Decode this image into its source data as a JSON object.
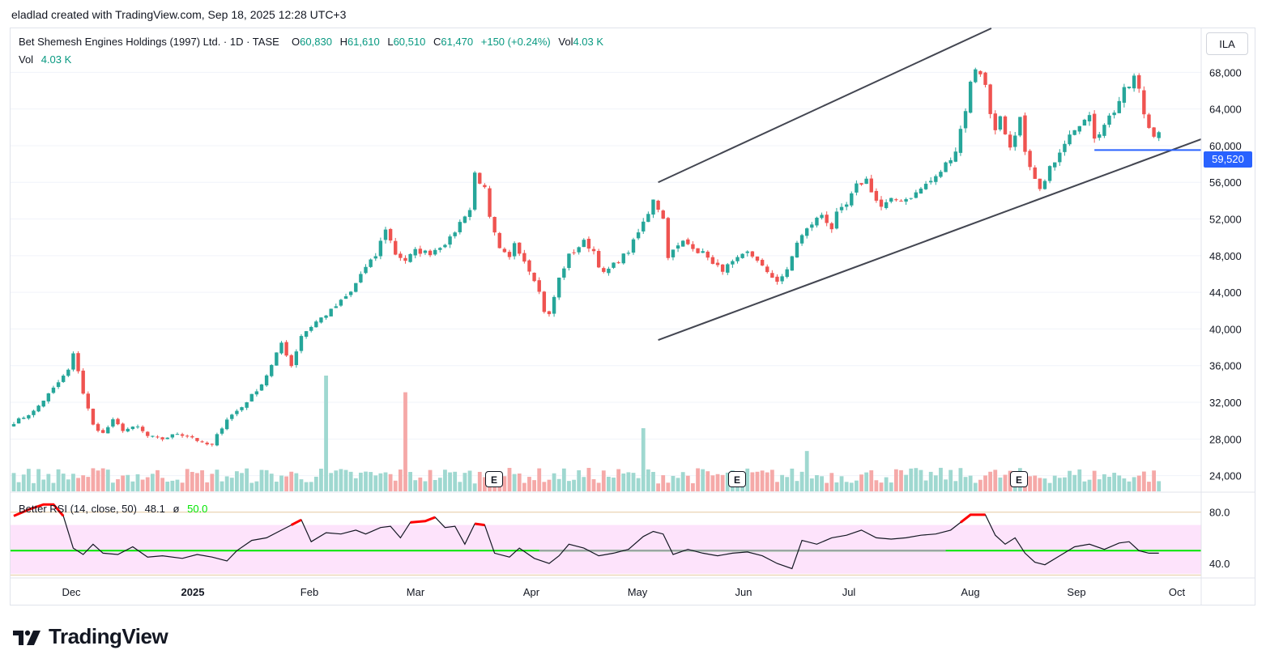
{
  "header": {
    "credit": "eladlad created with TradingView.com, Sep 18, 2025 12:28 UTC+3"
  },
  "legend": {
    "title": "Bet Shemesh Engines Holdings (1997) Ltd. · 1D · TASE",
    "o_label": "O",
    "o_value": "60,830",
    "h_label": "H",
    "h_value": "61,610",
    "l_label": "L",
    "l_value": "60,510",
    "c_label": "C",
    "c_value": "61,470",
    "change": "+150 (+0.24%)",
    "vol_label": "Vol",
    "vol_value": "4.03 K",
    "vol_row_label": "Vol",
    "vol_row_value": "4.03 K"
  },
  "ticker_button": "ILA",
  "last_price_badge": "59,520",
  "earnings_marker": "E",
  "rsi_legend": {
    "name": "Better RSI (14, close, 50)",
    "value": "48.1",
    "sep": "ø",
    "level": "50.0"
  },
  "brand": {
    "name": "TradingView",
    "icon": "tradingview-logo-icon"
  },
  "colors": {
    "up": "#26a69a",
    "down": "#ef5350",
    "vol_up": "#9fd8d0",
    "vol_down": "#f5a9a8",
    "channel": "#434651",
    "support": "#2962ff",
    "rsi_line": "#131722",
    "rsi_over": "#ff0000",
    "rsi_mid": "#00e600",
    "rsi_band": "#fde3fb"
  },
  "chart_data": {
    "type": "candlestick",
    "title": "Bet Shemesh Engines Holdings (1997) Ltd.",
    "interval": "1D",
    "exchange": "TASE",
    "currency": "ILA",
    "x_labels": [
      "Dec",
      "2025",
      "Feb",
      "Mar",
      "Apr",
      "May",
      "Jun",
      "Jul",
      "Aug",
      "Sep",
      "Oct"
    ],
    "y_ticks": [
      24000,
      28000,
      32000,
      36000,
      40000,
      44000,
      48000,
      52000,
      56000,
      60000,
      64000,
      68000
    ],
    "ylim": [
      22200,
      72800
    ],
    "price_path": [
      [
        0,
        29800
      ],
      [
        4,
        31000
      ],
      [
        8,
        33500
      ],
      [
        11,
        35500
      ],
      [
        12,
        37200
      ],
      [
        13,
        35500
      ],
      [
        14,
        33000
      ],
      [
        16,
        29500
      ],
      [
        18,
        28600
      ],
      [
        20,
        30000
      ],
      [
        22,
        29000
      ],
      [
        25,
        29300
      ],
      [
        27,
        28300
      ],
      [
        30,
        28000
      ],
      [
        33,
        28600
      ],
      [
        36,
        28200
      ],
      [
        38,
        27500
      ],
      [
        40,
        27300
      ],
      [
        41,
        28400
      ],
      [
        43,
        30200
      ],
      [
        46,
        31500
      ],
      [
        50,
        34000
      ],
      [
        52,
        36000
      ],
      [
        54,
        38500
      ],
      [
        56,
        36000
      ],
      [
        58,
        39300
      ],
      [
        61,
        40800
      ],
      [
        64,
        42000
      ],
      [
        68,
        44000
      ],
      [
        70,
        46000
      ],
      [
        73,
        48000
      ],
      [
        75,
        51000
      ],
      [
        77,
        48200
      ],
      [
        79,
        47500
      ],
      [
        81,
        48500
      ],
      [
        84,
        48300
      ],
      [
        88,
        49800
      ],
      [
        91,
        52500
      ],
      [
        92,
        53000
      ],
      [
        93,
        57000
      ],
      [
        95,
        55200
      ],
      [
        96,
        52000
      ],
      [
        98,
        48600
      ],
      [
        100,
        47700
      ],
      [
        101,
        49500
      ],
      [
        103,
        47500
      ],
      [
        105,
        45500
      ],
      [
        106,
        44000
      ],
      [
        107,
        42000
      ],
      [
        108,
        41500
      ],
      [
        109,
        43500
      ],
      [
        110,
        45500
      ],
      [
        112,
        48000
      ],
      [
        115,
        49500
      ],
      [
        117,
        48500
      ],
      [
        118,
        47000
      ],
      [
        119,
        46000
      ],
      [
        122,
        47500
      ],
      [
        124,
        48500
      ],
      [
        126,
        50500
      ],
      [
        128,
        52700
      ],
      [
        129,
        54300
      ],
      [
        130,
        53200
      ],
      [
        131,
        52000
      ],
      [
        132,
        48000
      ],
      [
        135,
        49500
      ],
      [
        137,
        49000
      ],
      [
        138,
        48500
      ],
      [
        140,
        48000
      ],
      [
        141,
        47000
      ],
      [
        143,
        46500
      ],
      [
        145,
        47200
      ],
      [
        148,
        48300
      ],
      [
        150,
        47600
      ],
      [
        152,
        46000
      ],
      [
        154,
        45300
      ],
      [
        156,
        46300
      ],
      [
        158,
        49500
      ],
      [
        161,
        51500
      ],
      [
        163,
        52500
      ],
      [
        165,
        51000
      ],
      [
        166,
        52500
      ],
      [
        168,
        53500
      ],
      [
        170,
        55600
      ],
      [
        172,
        56300
      ],
      [
        174,
        54000
      ],
      [
        175,
        53300
      ],
      [
        177,
        54000
      ],
      [
        180,
        54200
      ],
      [
        182,
        54800
      ],
      [
        184,
        55800
      ],
      [
        186,
        56500
      ],
      [
        188,
        58000
      ],
      [
        190,
        59500
      ],
      [
        191,
        61800
      ],
      [
        192,
        64000
      ],
      [
        193,
        66800
      ],
      [
        194,
        68500
      ],
      [
        195,
        68000
      ],
      [
        196,
        66500
      ],
      [
        197,
        63500
      ],
      [
        198,
        62000
      ],
      [
        199,
        63000
      ],
      [
        200,
        61000
      ],
      [
        201,
        59500
      ],
      [
        202,
        60800
      ],
      [
        203,
        63000
      ],
      [
        204,
        59000
      ],
      [
        205,
        58000
      ],
      [
        206,
        56200
      ],
      [
        207,
        55200
      ],
      [
        208,
        56000
      ],
      [
        209,
        57500
      ],
      [
        211,
        59500
      ],
      [
        213,
        61500
      ],
      [
        215,
        62500
      ],
      [
        217,
        63000
      ],
      [
        218,
        61000
      ],
      [
        219,
        61500
      ],
      [
        220,
        62500
      ],
      [
        222,
        63800
      ],
      [
        224,
        66000
      ],
      [
        225,
        66500
      ],
      [
        226,
        67500
      ],
      [
        227,
        66000
      ],
      [
        228,
        63500
      ],
      [
        229,
        62000
      ],
      [
        230,
        61300
      ],
      [
        231,
        61500
      ]
    ],
    "candle_count": 232,
    "volume": {
      "spikes": [
        {
          "index": 63,
          "value": 13200
        },
        {
          "index": 79,
          "value": 11300
        },
        {
          "index": 127,
          "value": 7200
        },
        {
          "index": 160,
          "value": 4600
        }
      ]
    },
    "channel": {
      "upper": [
        [
          130,
          56000
        ],
        [
          222,
          79000
        ]
      ],
      "lower": [
        [
          130,
          38800
        ],
        [
          240,
          60800
        ]
      ]
    },
    "support_line": {
      "from_index": 218,
      "price": 59520
    },
    "earnings_markers": [
      98,
      147,
      204
    ],
    "rsi": {
      "name": "Better RSI",
      "params": "14, close, 50",
      "ylim": [
        30,
        88
      ],
      "y_ticks": [
        40.0,
        80.0
      ],
      "midline": 50.0,
      "band": [
        32,
        70
      ],
      "overbought_level": 70,
      "last": 48.1,
      "path": [
        [
          0,
          77
        ],
        [
          3,
          82
        ],
        [
          6,
          86
        ],
        [
          8,
          86
        ],
        [
          10,
          77
        ],
        [
          12,
          52
        ],
        [
          14,
          47
        ],
        [
          16,
          55
        ],
        [
          18,
          48
        ],
        [
          21,
          47
        ],
        [
          24,
          53
        ],
        [
          27,
          45
        ],
        [
          30,
          46
        ],
        [
          34,
          44
        ],
        [
          37,
          47
        ],
        [
          40,
          45
        ],
        [
          43,
          42
        ],
        [
          45,
          50
        ],
        [
          48,
          58
        ],
        [
          51,
          60
        ],
        [
          54,
          66
        ],
        [
          56,
          70
        ],
        [
          58,
          74
        ],
        [
          60,
          57
        ],
        [
          63,
          64
        ],
        [
          66,
          63
        ],
        [
          69,
          66
        ],
        [
          71,
          63
        ],
        [
          74,
          68
        ],
        [
          76,
          69
        ],
        [
          78,
          60
        ],
        [
          80,
          72
        ],
        [
          83,
          73
        ],
        [
          85,
          76
        ],
        [
          87,
          68
        ],
        [
          89,
          69
        ],
        [
          91,
          55
        ],
        [
          93,
          71
        ],
        [
          95,
          70
        ],
        [
          97,
          48
        ],
        [
          100,
          45
        ],
        [
          102,
          52
        ],
        [
          105,
          44
        ],
        [
          108,
          40
        ],
        [
          110,
          46
        ],
        [
          112,
          55
        ],
        [
          115,
          52
        ],
        [
          118,
          46
        ],
        [
          121,
          48
        ],
        [
          124,
          51
        ],
        [
          127,
          61
        ],
        [
          129,
          65
        ],
        [
          131,
          63
        ],
        [
          133,
          47
        ],
        [
          136,
          51
        ],
        [
          139,
          48
        ],
        [
          142,
          46
        ],
        [
          145,
          48
        ],
        [
          148,
          49
        ],
        [
          151,
          46
        ],
        [
          154,
          40
        ],
        [
          157,
          36
        ],
        [
          159,
          58
        ],
        [
          162,
          55
        ],
        [
          165,
          60
        ],
        [
          168,
          62
        ],
        [
          171,
          66
        ],
        [
          174,
          60
        ],
        [
          177,
          59
        ],
        [
          180,
          60
        ],
        [
          183,
          62
        ],
        [
          186,
          63
        ],
        [
          189,
          66
        ],
        [
          191,
          72
        ],
        [
          193,
          78
        ],
        [
          196,
          78
        ],
        [
          198,
          62
        ],
        [
          200,
          55
        ],
        [
          202,
          60
        ],
        [
          204,
          48
        ],
        [
          206,
          41
        ],
        [
          208,
          39
        ],
        [
          211,
          46
        ],
        [
          214,
          53
        ],
        [
          217,
          55
        ],
        [
          220,
          51
        ],
        [
          223,
          56
        ],
        [
          225,
          57
        ],
        [
          227,
          50
        ],
        [
          229,
          48
        ],
        [
          231,
          48
        ]
      ]
    }
  }
}
